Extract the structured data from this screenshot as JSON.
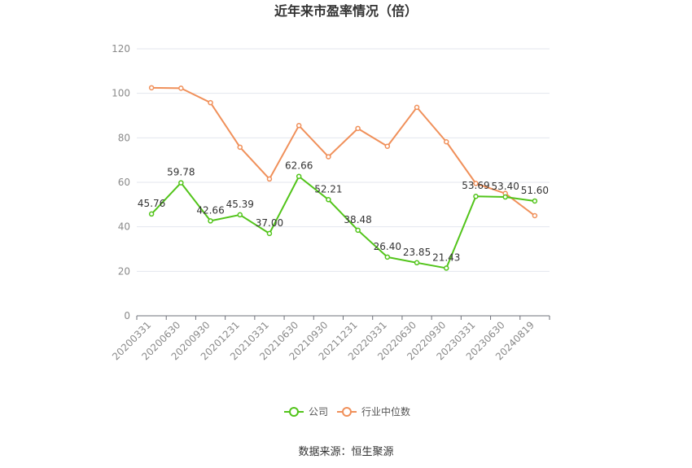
{
  "chart_data": {
    "type": "line",
    "title": "近年来市盈率情况（倍）",
    "categories": [
      "20200331",
      "20200630",
      "20200930",
      "20201231",
      "20210331",
      "20210630",
      "20210930",
      "20211231",
      "20220331",
      "20220630",
      "20220930",
      "20230331",
      "20230630",
      "20240819"
    ],
    "ylim": [
      0,
      120
    ],
    "yticks": [
      0,
      20,
      40,
      60,
      80,
      100,
      120
    ],
    "grid": true,
    "legend_position": "bottom",
    "series": [
      {
        "name": "公司",
        "color": "#52c41a",
        "values": [
          45.76,
          59.78,
          42.66,
          45.39,
          37.0,
          62.66,
          52.21,
          38.48,
          26.4,
          23.85,
          21.43,
          53.69,
          53.4,
          51.6
        ],
        "labels": [
          "45.76",
          "59.78",
          "42.66",
          "45.39",
          "37.00",
          "62.66",
          "52.21",
          "38.48",
          "26.40",
          "23.85",
          "21.43",
          "53.69",
          "53.40",
          "51.60"
        ]
      },
      {
        "name": "行业中位数",
        "color": "#f0905a",
        "values": [
          102.5,
          102.3,
          95.8,
          75.8,
          61.5,
          85.5,
          71.5,
          84.2,
          76.2,
          93.7,
          78.2,
          59.5,
          55.0,
          45.0
        ]
      }
    ]
  },
  "source_text": "数据来源：恒生聚源"
}
